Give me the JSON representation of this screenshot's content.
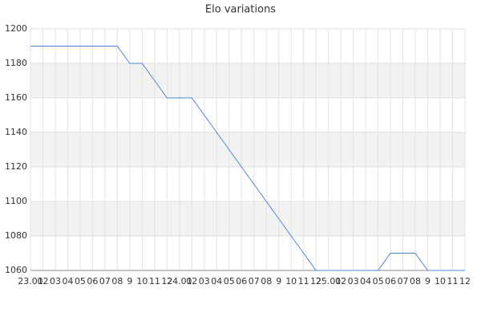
{
  "chart_data": {
    "type": "line",
    "title": "Elo variations",
    "categories": [
      "23.01",
      "02",
      "03",
      "04",
      "05",
      "06",
      "07",
      "08",
      "9",
      "10",
      "11",
      "12",
      "24.01",
      "02",
      "03",
      "04",
      "05",
      "06",
      "07",
      "08",
      "9",
      "10",
      "11",
      "12",
      "25.01",
      "02",
      "03",
      "04",
      "05",
      "06",
      "07",
      "08",
      "9",
      "10",
      "11",
      "12"
    ],
    "values": [
      1190,
      1190,
      1190,
      1190,
      1190,
      1190,
      1190,
      1190,
      1180,
      1180,
      1170,
      1160,
      1160,
      1160,
      1150,
      1140,
      1130,
      1120,
      1110,
      1100,
      1090,
      1080,
      1070,
      1060,
      1060,
      1060,
      1060,
      1060,
      1060,
      1070,
      1070,
      1070,
      1060,
      1060,
      1060,
      1060
    ],
    "color": "#4a86d8",
    "ylim": [
      1060,
      1200
    ],
    "yticks": [
      1060,
      1080,
      1100,
      1120,
      1140,
      1160,
      1180,
      1200
    ],
    "grid": true
  }
}
